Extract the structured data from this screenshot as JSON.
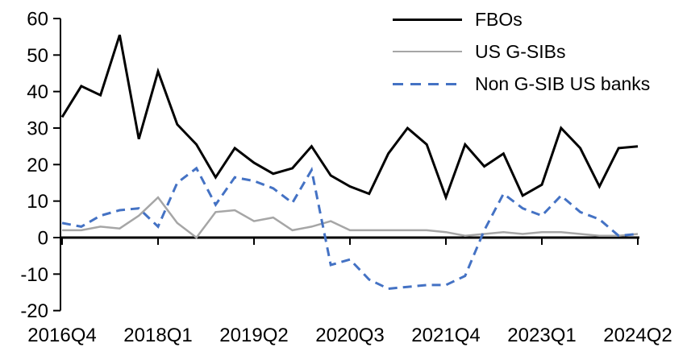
{
  "chart_data": {
    "type": "line",
    "title": "",
    "grid": false,
    "legend_position": "top-right",
    "ylim": [
      -20,
      60
    ],
    "ytick_step": 10,
    "categories": [
      "2016Q4",
      "2017Q1",
      "2017Q2",
      "2017Q3",
      "2017Q4",
      "2018Q1",
      "2018Q2",
      "2018Q3",
      "2018Q4",
      "2019Q1",
      "2019Q2",
      "2019Q3",
      "2019Q4",
      "2020Q1",
      "2020Q2",
      "2020Q3",
      "2020Q4",
      "2021Q1",
      "2021Q2",
      "2021Q3",
      "2021Q4",
      "2022Q1",
      "2022Q2",
      "2022Q3",
      "2022Q4",
      "2023Q1",
      "2023Q2",
      "2023Q3",
      "2023Q4",
      "2024Q1",
      "2024Q2"
    ],
    "x_axis": {
      "labels": [
        "2016Q4",
        "2018Q1",
        "2019Q2",
        "2020Q3",
        "2021Q4",
        "2023Q1",
        "2024Q2"
      ],
      "indices": [
        0,
        5,
        10,
        15,
        20,
        25,
        30
      ]
    },
    "y_axis": {
      "labels": [
        "60",
        "50",
        "40",
        "30",
        "20",
        "10",
        "0",
        "-10",
        "-20"
      ],
      "values": [
        60,
        50,
        40,
        30,
        20,
        10,
        0,
        -10,
        -20
      ]
    },
    "series": [
      {
        "name": "FBOs",
        "color": "#000000",
        "width": 3,
        "dash": "",
        "values": [
          33,
          41.5,
          39,
          55.5,
          27,
          45.5,
          31,
          25.5,
          16.5,
          24.5,
          20.5,
          17.5,
          19,
          25,
          17,
          14,
          12,
          23,
          30,
          25.5,
          11,
          25.5,
          19.5,
          23,
          11.5,
          14.5,
          30,
          24.5,
          14,
          24.5,
          25
        ]
      },
      {
        "name": "US G-SIBs",
        "color": "#a6a6a6",
        "width": 2.5,
        "dash": "",
        "values": [
          2,
          2,
          3,
          2.5,
          6,
          11,
          4,
          0,
          7,
          7.5,
          4.5,
          5.5,
          2,
          3,
          4.5,
          2,
          2,
          2,
          2,
          2,
          1.5,
          0.5,
          1,
          1.5,
          1,
          1.5,
          1.5,
          1,
          0.5,
          0.5,
          1
        ]
      },
      {
        "name": "Non G-SIB US banks",
        "color": "#4472c4",
        "width": 3,
        "dash": "11 7",
        "values": [
          4,
          3,
          6,
          7.5,
          8,
          3,
          15,
          19,
          9,
          16.5,
          15.5,
          13.5,
          9.5,
          18.5,
          -7.5,
          -6,
          -11.5,
          -14,
          -13.5,
          -13,
          -13,
          -10.5,
          2,
          12,
          8,
          6,
          11.5,
          7,
          5,
          0.5,
          1
        ]
      }
    ]
  }
}
